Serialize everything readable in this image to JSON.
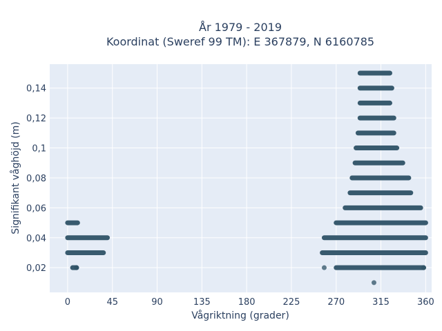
{
  "chart_data": {
    "type": "scatter",
    "title_line1": "År 1979 - 2019",
    "title_line2": "Koordinat (Sweref 99 TM): E 367879, N 6160785",
    "xlabel": "Vågriktning (grader)",
    "ylabel": "Signifikant våghöjd (m)",
    "xlim": [
      -18,
      366
    ],
    "ylim": [
      0.0035,
      0.156
    ],
    "x_ticks": [
      0,
      45,
      90,
      135,
      180,
      225,
      270,
      315,
      360
    ],
    "y_ticks": [
      0.02,
      0.04,
      0.06,
      0.08,
      0.1,
      0.12,
      0.14
    ],
    "y_tick_labels": [
      "0,02",
      "0,04",
      "0,06",
      "0,08",
      "0,1",
      "0,12",
      "0,14"
    ],
    "grid": true,
    "legend": "none",
    "colors": {
      "marker": "#2e5266",
      "plot_bg": "#e5ecf6",
      "grid": "#ffffff",
      "text": "#2a3f5f"
    },
    "bands": [
      {
        "y": 0.05,
        "x_ranges": [
          [
            0,
            10
          ]
        ]
      },
      {
        "y": 0.04,
        "x_ranges": [
          [
            0,
            40
          ],
          [
            258,
            360
          ]
        ]
      },
      {
        "y": 0.03,
        "x_ranges": [
          [
            0,
            36
          ],
          [
            256,
            360
          ]
        ]
      },
      {
        "y": 0.02,
        "x_ranges": [
          [
            5,
            9
          ],
          [
            270,
            358
          ]
        ]
      },
      {
        "y": 0.15,
        "x_ranges": [
          [
            294,
            324
          ]
        ]
      },
      {
        "y": 0.14,
        "x_ranges": [
          [
            294,
            326
          ]
        ]
      },
      {
        "y": 0.13,
        "x_ranges": [
          [
            294,
            324
          ]
        ]
      },
      {
        "y": 0.12,
        "x_ranges": [
          [
            294,
            328
          ]
        ]
      },
      {
        "y": 0.11,
        "x_ranges": [
          [
            292,
            328
          ]
        ]
      },
      {
        "y": 0.1,
        "x_ranges": [
          [
            290,
            331
          ]
        ]
      },
      {
        "y": 0.09,
        "x_ranges": [
          [
            289,
            337
          ]
        ]
      },
      {
        "y": 0.08,
        "x_ranges": [
          [
            286,
            343
          ]
        ]
      },
      {
        "y": 0.07,
        "x_ranges": [
          [
            284,
            345
          ]
        ]
      },
      {
        "y": 0.06,
        "x_ranges": [
          [
            279,
            355
          ]
        ]
      },
      {
        "y": 0.05,
        "x_ranges": [
          [
            270,
            360
          ]
        ]
      }
    ],
    "points": [
      {
        "x": 258,
        "y": 0.02
      },
      {
        "x": 358,
        "y": 0.02
      },
      {
        "x": 9,
        "y": 0.02
      },
      {
        "x": 308,
        "y": 0.01
      }
    ]
  }
}
